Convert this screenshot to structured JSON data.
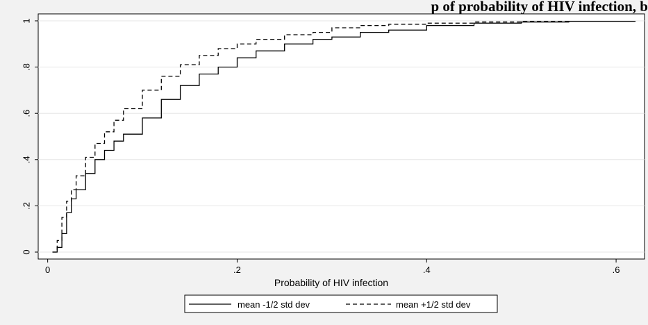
{
  "chart_data": {
    "type": "line",
    "title": "p of probability of HIV infection, b",
    "xlabel": "Probability of HIV infection",
    "ylabel": "",
    "xlim": [
      -0.01,
      0.63
    ],
    "ylim": [
      -0.03,
      1.03
    ],
    "x_ticks": [
      0,
      0.2,
      0.4,
      0.6
    ],
    "x_tick_labels": [
      "0",
      ".2",
      ".4",
      ".6"
    ],
    "y_ticks": [
      0,
      0.2,
      0.4,
      0.6,
      0.8,
      1
    ],
    "y_tick_labels": [
      "0",
      ".2",
      ".4",
      ".6",
      ".8",
      "1"
    ],
    "grid": true,
    "legend_position": "bottom",
    "series": [
      {
        "name": "mean -1/2 std dev",
        "style": "solid",
        "color": "#000000",
        "x": [
          0.005,
          0.01,
          0.015,
          0.02,
          0.025,
          0.03,
          0.04,
          0.05,
          0.06,
          0.07,
          0.08,
          0.1,
          0.12,
          0.14,
          0.16,
          0.18,
          0.2,
          0.22,
          0.25,
          0.28,
          0.3,
          0.33,
          0.36,
          0.4,
          0.45,
          0.5,
          0.55,
          0.62
        ],
        "values": [
          0.0,
          0.02,
          0.08,
          0.17,
          0.23,
          0.27,
          0.34,
          0.4,
          0.44,
          0.48,
          0.51,
          0.58,
          0.66,
          0.72,
          0.77,
          0.8,
          0.84,
          0.87,
          0.9,
          0.92,
          0.93,
          0.95,
          0.96,
          0.98,
          0.99,
          0.995,
          0.998,
          1.0
        ]
      },
      {
        "name": "mean +1/2 std dev",
        "style": "dashed",
        "color": "#000000",
        "x": [
          0.005,
          0.01,
          0.015,
          0.02,
          0.025,
          0.03,
          0.04,
          0.05,
          0.06,
          0.07,
          0.08,
          0.1,
          0.12,
          0.14,
          0.16,
          0.18,
          0.2,
          0.22,
          0.25,
          0.28,
          0.3,
          0.33,
          0.36,
          0.4,
          0.45,
          0.5,
          0.55
        ],
        "values": [
          0.0,
          0.05,
          0.15,
          0.22,
          0.27,
          0.33,
          0.41,
          0.47,
          0.52,
          0.57,
          0.62,
          0.7,
          0.76,
          0.81,
          0.85,
          0.88,
          0.9,
          0.92,
          0.94,
          0.95,
          0.97,
          0.98,
          0.985,
          0.99,
          0.995,
          0.998,
          1.0
        ]
      }
    ]
  }
}
